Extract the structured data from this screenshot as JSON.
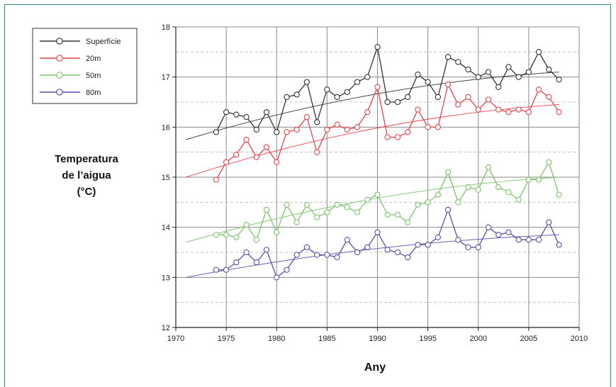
{
  "chart_data": {
    "type": "line",
    "xlabel": "Any",
    "ylabel": [
      "Temperatura",
      "de l’aigua",
      "(°C)"
    ],
    "xlim": [
      1970,
      2010
    ],
    "ylim": [
      12,
      18
    ],
    "xticks": [
      1970,
      1975,
      1980,
      1985,
      1990,
      1995,
      2000,
      2005,
      2010
    ],
    "yticks": [
      12,
      13,
      14,
      15,
      16,
      17,
      18
    ],
    "grid": true,
    "legend_position": "top-left",
    "x": [
      1974,
      1975,
      1976,
      1977,
      1978,
      1979,
      1980,
      1981,
      1982,
      1983,
      1984,
      1985,
      1986,
      1987,
      1988,
      1989,
      1990,
      1991,
      1992,
      1993,
      1994,
      1995,
      1996,
      1997,
      1998,
      1999,
      2000,
      2001,
      2002,
      2003,
      2004,
      2005,
      2006,
      2007,
      2008
    ],
    "series": [
      {
        "name": "Superfície",
        "color": "#333333",
        "values": [
          15.9,
          16.3,
          16.25,
          16.2,
          15.95,
          16.3,
          15.9,
          16.6,
          16.65,
          16.9,
          16.1,
          16.75,
          16.6,
          16.7,
          16.9,
          17.0,
          17.6,
          16.5,
          16.5,
          16.6,
          17.05,
          16.9,
          16.6,
          17.4,
          17.3,
          17.15,
          17.0,
          17.1,
          16.8,
          17.2,
          17.0,
          17.1,
          17.5,
          17.15,
          16.95
        ],
        "trend": {
          "x": [
            1971,
            2008
          ],
          "y": [
            15.75,
            17.1
          ]
        }
      },
      {
        "name": "20m",
        "color": "#e8434a",
        "values": [
          14.95,
          15.3,
          15.45,
          15.75,
          15.4,
          15.6,
          15.3,
          15.9,
          15.95,
          16.2,
          15.5,
          15.95,
          16.05,
          15.95,
          16.0,
          16.3,
          16.8,
          15.8,
          15.8,
          15.9,
          16.35,
          16.0,
          16.0,
          16.85,
          16.45,
          16.6,
          16.35,
          16.55,
          16.35,
          16.3,
          16.35,
          16.3,
          16.75,
          16.6,
          16.3
        ],
        "trend": {
          "x": [
            1971,
            2008
          ],
          "y": [
            15.0,
            16.45
          ]
        }
      },
      {
        "name": "50m",
        "color": "#7cc36a",
        "values": [
          13.85,
          13.85,
          13.8,
          14.05,
          13.75,
          14.35,
          13.9,
          14.45,
          14.1,
          14.45,
          14.2,
          14.3,
          14.45,
          14.4,
          14.3,
          14.55,
          14.65,
          14.25,
          14.25,
          14.1,
          14.45,
          14.5,
          14.65,
          15.1,
          14.5,
          14.8,
          14.75,
          15.2,
          14.8,
          14.7,
          14.55,
          14.95,
          14.95,
          15.3,
          14.65
        ],
        "trend": {
          "x": [
            1971,
            2008
          ],
          "y": [
            13.7,
            15.0
          ]
        }
      },
      {
        "name": "80m",
        "color": "#5d4fa8",
        "values": [
          13.15,
          13.15,
          13.3,
          13.5,
          13.3,
          13.55,
          13.0,
          13.15,
          13.45,
          13.6,
          13.45,
          13.45,
          13.4,
          13.75,
          13.5,
          13.6,
          13.9,
          13.55,
          13.5,
          13.4,
          13.65,
          13.65,
          13.8,
          14.35,
          13.75,
          13.6,
          13.6,
          14.0,
          13.85,
          13.9,
          13.75,
          13.75,
          13.75,
          14.1,
          13.65
        ],
        "trend": {
          "x": [
            1971,
            2008
          ],
          "y": [
            13.0,
            13.85
          ]
        }
      }
    ]
  }
}
